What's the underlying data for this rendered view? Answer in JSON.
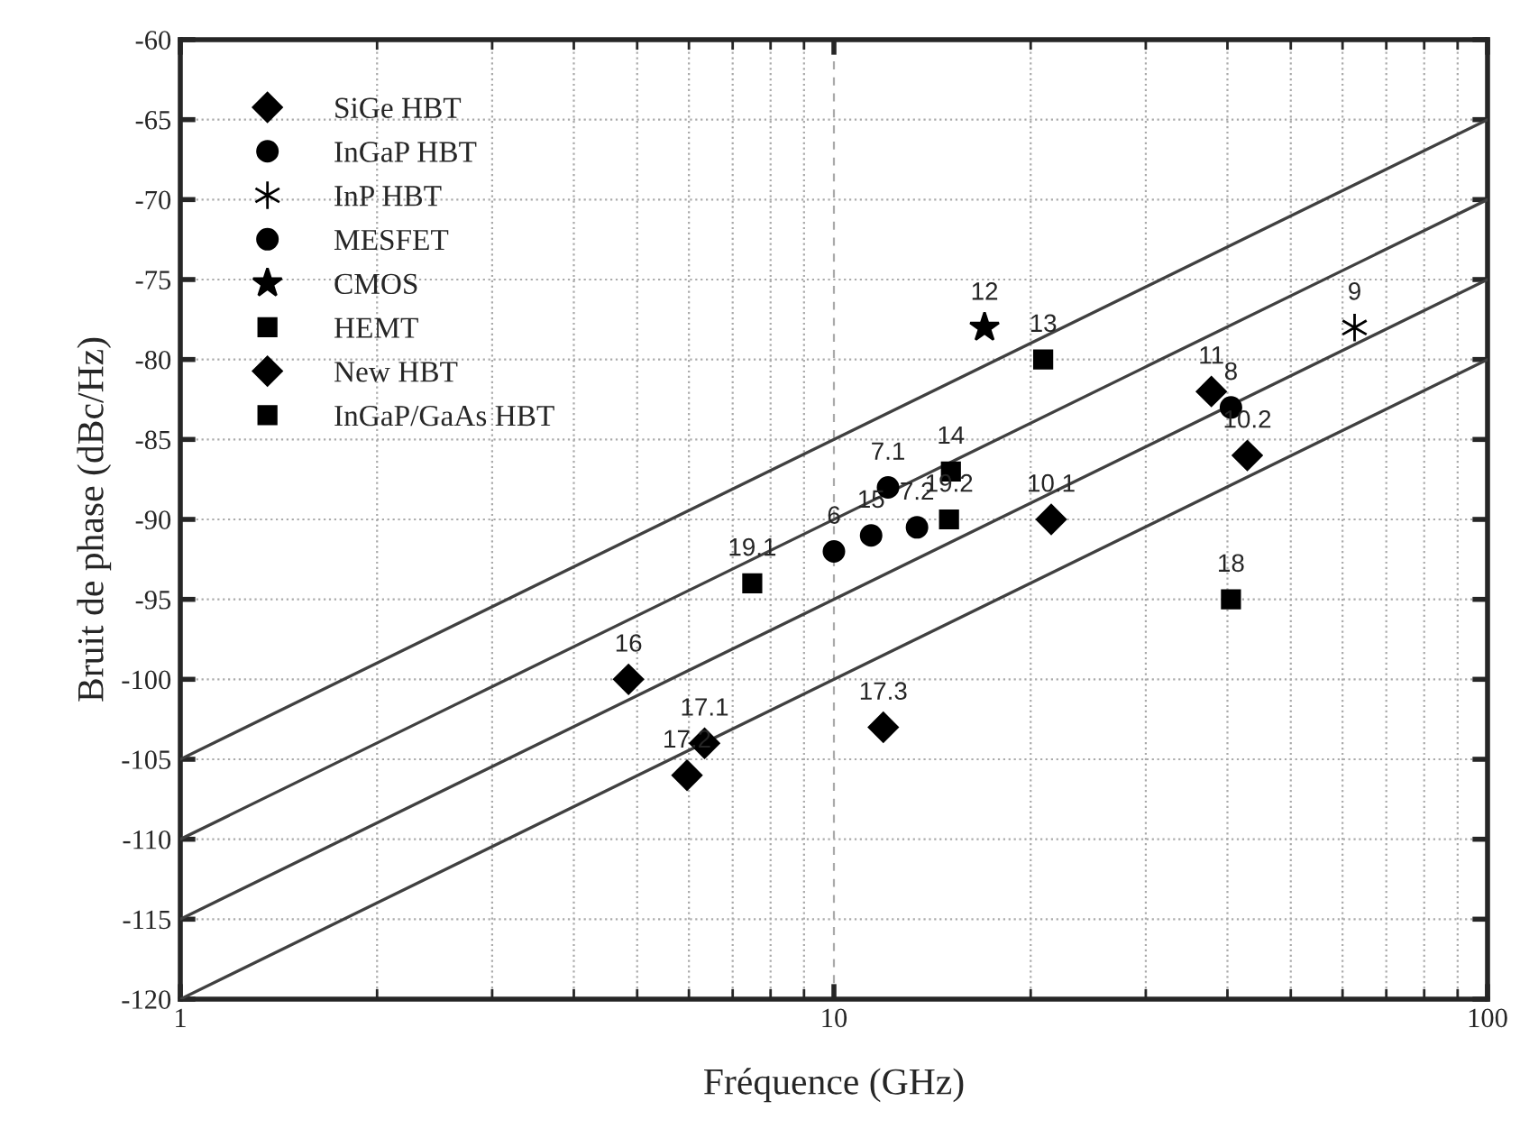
{
  "chart_data": {
    "type": "scatter",
    "xlabel": "Fréquence (GHz)",
    "ylabel": "Bruit de phase (dBc/Hz)",
    "log": "x",
    "xlim": [
      1,
      100
    ],
    "xticks": [
      1,
      10,
      100
    ],
    "ylim": [
      -120,
      -60
    ],
    "yticks": [
      -120,
      -115,
      -110,
      -105,
      -100,
      -95,
      -90,
      -85,
      -80,
      -75,
      -70,
      -65,
      -60
    ],
    "grid": true,
    "legend": "top left",
    "series": [
      {
        "name": "SiGe HBT",
        "color": "#000000",
        "marker": "diamond",
        "x": [
          4.85,
          6.34,
          5.96,
          11.9,
          21.5,
          42.9
        ],
        "values": [
          -100,
          -104,
          -106,
          -103,
          -90,
          -86
        ]
      },
      {
        "name": "InGaP HBT",
        "color": "#000000",
        "marker": "circle",
        "x": [
          10,
          12.1,
          13.4,
          40.5
        ],
        "values": [
          -92,
          -88,
          -90.5,
          -83
        ]
      },
      {
        "name": "InP HBT",
        "color": "#000000",
        "marker": "cross",
        "x": [
          62.6
        ],
        "values": [
          -78
        ]
      },
      {
        "name": "MESFET",
        "color": "#000000",
        "marker": "circle",
        "x": [
          11.4
        ],
        "values": [
          -91
        ]
      },
      {
        "name": "CMOS",
        "color": "#000000",
        "marker": "star",
        "x": [
          17.0
        ],
        "values": [
          -78
        ]
      },
      {
        "name": "HEMT",
        "color": "#000000",
        "marker": "square",
        "x": [
          7.5,
          15.1,
          15.0,
          20.9
        ],
        "values": [
          -94,
          -87,
          -90,
          -80
        ]
      },
      {
        "name": "New HBT",
        "color": "#000000",
        "marker": "diamond",
        "x": [
          37.8
        ],
        "values": [
          -82
        ]
      },
      {
        "name": "InGaP/GaAs HBT",
        "color": "#000000",
        "marker": "square",
        "x": [
          40.5
        ],
        "values": [
          -95
        ]
      },
      {
        "type": "line",
        "color": "#404040",
        "x": [
          1,
          100
        ],
        "values": [
          -105,
          -65
        ]
      },
      {
        "type": "line",
        "color": "#404040",
        "x": [
          1,
          100
        ],
        "values": [
          -110,
          -70
        ]
      },
      {
        "type": "line",
        "color": "#404040",
        "x": [
          1,
          100
        ],
        "values": [
          -115,
          -75
        ]
      },
      {
        "type": "line",
        "color": "#404040",
        "x": [
          1,
          100
        ],
        "values": [
          -120,
          -80
        ]
      }
    ],
    "annotations": [
      {
        "text": "16",
        "x": 4.85,
        "y": -100
      },
      {
        "text": "17.1",
        "x": 6.34,
        "y": -104
      },
      {
        "text": "17.2",
        "x": 5.96,
        "y": -106
      },
      {
        "text": "17.3",
        "x": 11.9,
        "y": -103
      },
      {
        "text": "10.1",
        "x": 21.5,
        "y": -90
      },
      {
        "text": "10.2",
        "x": 42.9,
        "y": -86
      },
      {
        "text": "6",
        "x": 10,
        "y": -92
      },
      {
        "text": "7.1",
        "x": 12.1,
        "y": -88
      },
      {
        "text": "7.2",
        "x": 13.4,
        "y": -90.5
      },
      {
        "text": "8",
        "x": 40.5,
        "y": -83
      },
      {
        "text": "9",
        "x": 62.6,
        "y": -78
      },
      {
        "text": "15",
        "x": 11.4,
        "y": -91
      },
      {
        "text": "12",
        "x": 17.0,
        "y": -78
      },
      {
        "text": "19.1",
        "x": 7.5,
        "y": -94
      },
      {
        "text": "14",
        "x": 15.1,
        "y": -87
      },
      {
        "text": "19.2",
        "x": 15.0,
        "y": -90
      },
      {
        "text": "13",
        "x": 20.9,
        "y": -80
      },
      {
        "text": "11",
        "x": 37.8,
        "y": -82
      },
      {
        "text": "18",
        "x": 40.5,
        "y": -95
      }
    ]
  }
}
